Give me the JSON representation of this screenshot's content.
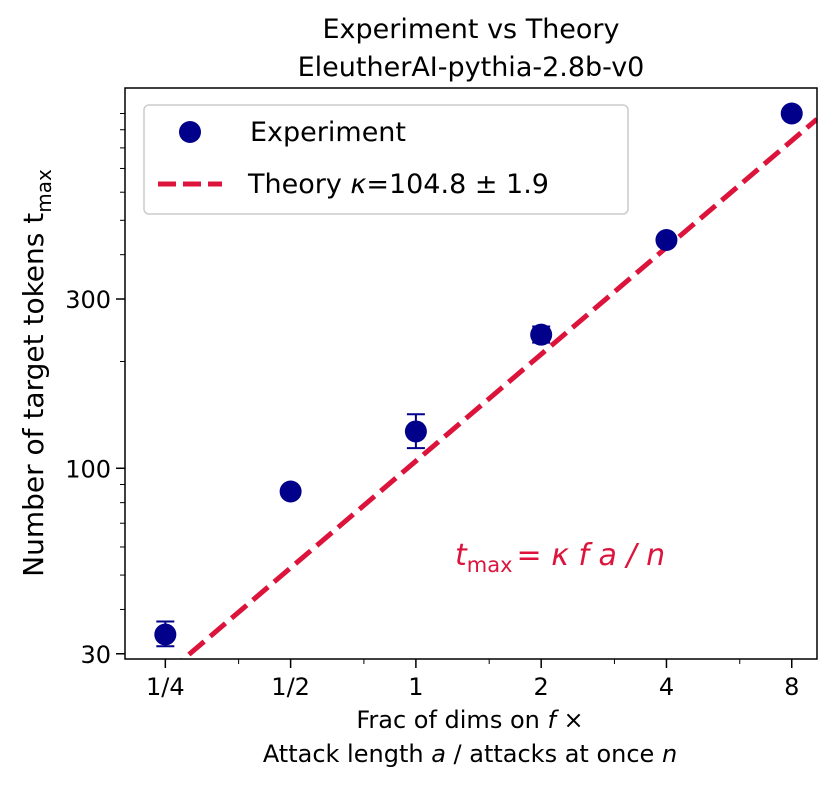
{
  "chart_data": {
    "type": "scatter",
    "title": "Experiment vs Theory",
    "subtitle": "EleutherAI-pythia-2.8b-v0",
    "xlabel_line1": "Frac of dims on f ×",
    "xlabel_line2": "Attack length a / attacks at once n",
    "ylabel": "Number of target tokens t",
    "ylabel_sub": "max",
    "x_scale": "log2",
    "y_scale": "log",
    "xlim": [
      0.2,
      9.2
    ],
    "ylim": [
      29,
      1180
    ],
    "x_ticks": [
      0.25,
      0.5,
      1,
      2,
      4,
      8
    ],
    "x_tick_labels": [
      "1/4",
      "1/2",
      "1",
      "2",
      "4",
      "8"
    ],
    "y_ticks": [
      30,
      100,
      300
    ],
    "y_tick_labels": [
      "30",
      "100",
      "300"
    ],
    "grid": false,
    "legend_position": "top-left",
    "series": [
      {
        "name": "Experiment",
        "kind": "points_with_errorbars",
        "color": "#00008b",
        "x": [
          0.25,
          0.5,
          1,
          2,
          4,
          8
        ],
        "y": [
          34,
          86,
          127,
          238,
          440,
          1000
        ],
        "y_err_low": [
          31.5,
          84,
          114,
          226,
          432,
          990
        ],
        "y_err_high": [
          37,
          88,
          142,
          251,
          448,
          1010
        ]
      },
      {
        "name": "Theory κ=104.8 ± 1.9",
        "kind": "dashed_line",
        "color": "#dc143c",
        "formula": "y = kappa * x",
        "kappa": 104.8,
        "kappa_err": 1.9
      }
    ],
    "annotation": {
      "t": "t",
      "sub": "max",
      "rhs": "= κ f a / n",
      "color": "#dc143c"
    }
  }
}
